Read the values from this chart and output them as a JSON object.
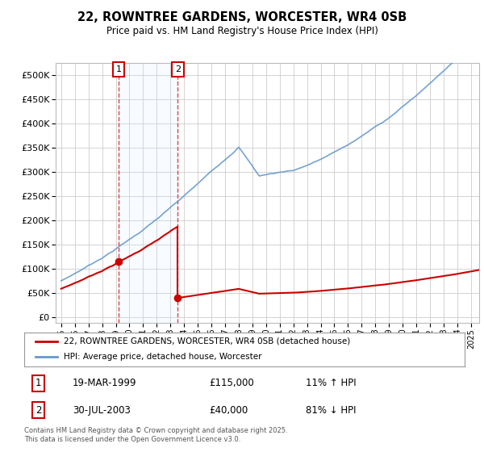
{
  "title": "22, ROWNTREE GARDENS, WORCESTER, WR4 0SB",
  "subtitle": "Price paid vs. HM Land Registry's House Price Index (HPI)",
  "legend_line1": "22, ROWNTREE GARDENS, WORCESTER, WR4 0SB (detached house)",
  "legend_line2": "HPI: Average price, detached house, Worcester",
  "transaction1_date": "19-MAR-1999",
  "transaction1_price": "£115,000",
  "transaction1_hpi": "11% ↑ HPI",
  "transaction2_date": "30-JUL-2003",
  "transaction2_price": "£40,000",
  "transaction2_hpi": "81% ↓ HPI",
  "footnote": "Contains HM Land Registry data © Crown copyright and database right 2025.\nThis data is licensed under the Open Government Licence v3.0.",
  "red_color": "#cc0000",
  "blue_color": "#6699cc",
  "vline_color": "#dd4444",
  "span_color": "#ddeeff",
  "ylim_max": 525000,
  "ylim_min": -12000,
  "background_color": "#ffffff",
  "grid_color": "#cccccc",
  "price_t1": 115000,
  "price_t2": 40000,
  "year_t1": 1999.21,
  "year_t2": 2003.54
}
